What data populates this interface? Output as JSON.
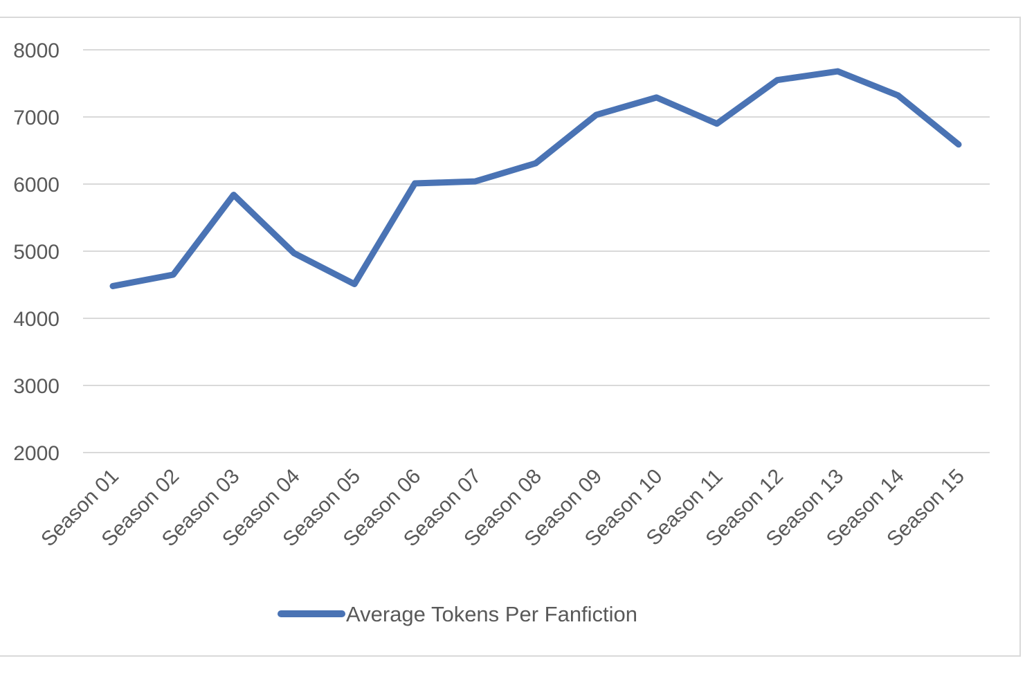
{
  "chart_data": {
    "type": "line",
    "categories": [
      "Season 01",
      "Season 02",
      "Season 03",
      "Season 04",
      "Season 05",
      "Season 06",
      "Season 07",
      "Season 08",
      "Season 09",
      "Season 10",
      "Season 11",
      "Season 12",
      "Season 13",
      "Season 14",
      "Season 15"
    ],
    "series": [
      {
        "name": "Average Tokens Per Fanfiction",
        "values": [
          4480,
          4650,
          5840,
          4970,
          4510,
          6010,
          6040,
          6310,
          7030,
          7290,
          6900,
          7550,
          7680,
          7320,
          6590
        ],
        "color": "#4a73b4"
      }
    ],
    "ylim": [
      2000,
      8000
    ],
    "yticks": [
      2000,
      3000,
      4000,
      5000,
      6000,
      7000,
      8000
    ],
    "grid": true,
    "legend_position": "bottom",
    "title": "",
    "xlabel": "",
    "ylabel": ""
  }
}
